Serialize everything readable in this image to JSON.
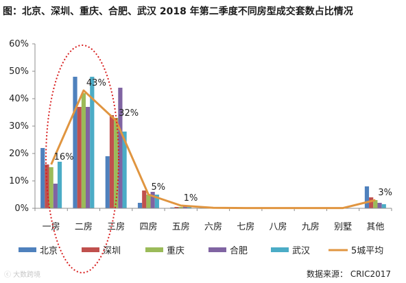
{
  "title": "图：北京、深圳、重庆、合肥、武汉 2018 年第二季度不同房型成交套数占比情况",
  "source": "数据来源： CRIC2017",
  "watermark": "ⓒ 大数跨境",
  "chart_data": {
    "type": "bar",
    "categories": [
      "一房",
      "二房",
      "三房",
      "四房",
      "五房",
      "六房",
      "七房",
      "八房",
      "九房",
      "别墅",
      "其他"
    ],
    "yticks": [
      "0%",
      "10%",
      "20%",
      "30%",
      "40%",
      "50%",
      "60%"
    ],
    "ylim": [
      0,
      60
    ],
    "series": [
      {
        "name": "北京",
        "color": "#4f81bd",
        "values": [
          22,
          48,
          19,
          2,
          0.3,
          0,
          0,
          0,
          0,
          0,
          8
        ]
      },
      {
        "name": "深圳",
        "color": "#c0504d",
        "values": [
          16,
          37,
          34,
          6.5,
          0.5,
          0,
          0,
          0,
          0,
          0,
          4
        ]
      },
      {
        "name": "重庆",
        "color": "#9bbb59",
        "values": [
          15,
          42,
          33,
          5,
          0.5,
          0,
          0,
          0,
          0,
          0,
          3
        ]
      },
      {
        "name": "合肥",
        "color": "#8064a2",
        "values": [
          9,
          37,
          44,
          6,
          1,
          0,
          0,
          0,
          0,
          0,
          2
        ]
      },
      {
        "name": "武汉",
        "color": "#4bacc6",
        "values": [
          17,
          48,
          28,
          5,
          0.8,
          0,
          0,
          0,
          0,
          0,
          1.5
        ]
      }
    ],
    "line": {
      "name": "5城平均",
      "color": "#e09540",
      "values": [
        16,
        43,
        32,
        5,
        1,
        0.2,
        0.1,
        0.1,
        0.1,
        0.1,
        3
      ],
      "labels": [
        "16%",
        "43%",
        "32%",
        "5%",
        "1%",
        "",
        "",
        "",
        "",
        "",
        "3%"
      ]
    },
    "legend_position": "bottom",
    "grid": false,
    "annotation": "red dotted ellipse highlighting 一房–三房"
  }
}
